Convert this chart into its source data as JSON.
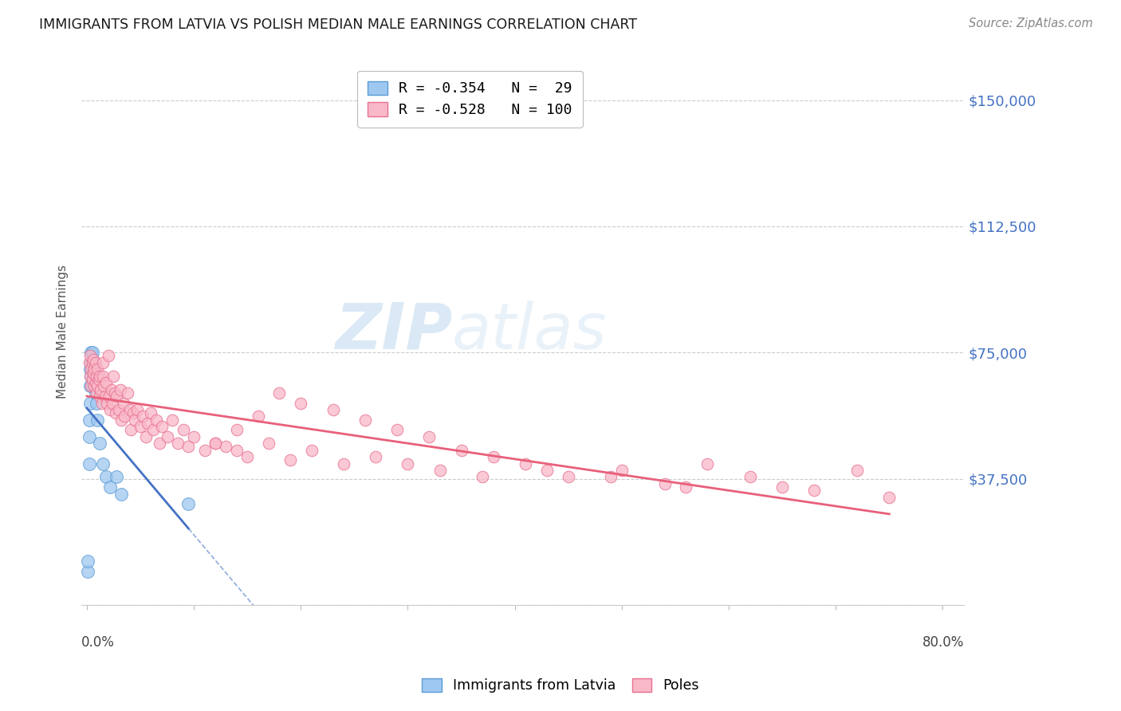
{
  "title": "IMMIGRANTS FROM LATVIA VS POLISH MEDIAN MALE EARNINGS CORRELATION CHART",
  "source": "Source: ZipAtlas.com",
  "ylabel": "Median Male Earnings",
  "yticks": [
    0,
    37500,
    75000,
    112500,
    150000
  ],
  "ytick_labels": [
    "",
    "$37,500",
    "$75,000",
    "$112,500",
    "$150,000"
  ],
  "ylim": [
    0,
    162500
  ],
  "xlim": [
    -0.005,
    0.82
  ],
  "watermark_text": "ZIPatlas",
  "color_latvia": "#9EC8F0",
  "color_poles": "#F9B8C8",
  "color_latvia_edge": "#5B9BD5",
  "color_poles_edge": "#E87090",
  "color_latvia_line": "#4472C4",
  "color_poles_line": "#E8607A",
  "color_right_labels": "#4472C4",
  "background_color": "#FFFFFF",
  "grid_color": "#CCCCCC",
  "legend_label1": "R = -0.354   N =  29",
  "legend_label2": "R = -0.528   N = 100",
  "bottom_legend1": "Immigrants from Latvia",
  "bottom_legend2": "Poles",
  "latvia_x": [
    0.001,
    0.001,
    0.002,
    0.002,
    0.002,
    0.003,
    0.003,
    0.003,
    0.004,
    0.004,
    0.004,
    0.005,
    0.005,
    0.005,
    0.006,
    0.006,
    0.007,
    0.007,
    0.008,
    0.009,
    0.009,
    0.01,
    0.012,
    0.015,
    0.018,
    0.022,
    0.028,
    0.032,
    0.095
  ],
  "latvia_y": [
    10000,
    13000,
    42000,
    50000,
    55000,
    60000,
    65000,
    70000,
    68000,
    72000,
    75000,
    65000,
    70000,
    75000,
    68000,
    72000,
    65000,
    70000,
    63000,
    60000,
    65000,
    55000,
    48000,
    42000,
    38000,
    35000,
    38000,
    33000,
    30000
  ],
  "poles_x": [
    0.002,
    0.003,
    0.003,
    0.004,
    0.004,
    0.005,
    0.005,
    0.006,
    0.006,
    0.007,
    0.007,
    0.008,
    0.008,
    0.009,
    0.009,
    0.01,
    0.01,
    0.011,
    0.012,
    0.012,
    0.013,
    0.014,
    0.015,
    0.015,
    0.016,
    0.017,
    0.018,
    0.019,
    0.02,
    0.021,
    0.022,
    0.023,
    0.024,
    0.025,
    0.026,
    0.027,
    0.028,
    0.03,
    0.031,
    0.032,
    0.034,
    0.035,
    0.038,
    0.04,
    0.041,
    0.043,
    0.045,
    0.047,
    0.05,
    0.052,
    0.055,
    0.057,
    0.06,
    0.062,
    0.065,
    0.068,
    0.07,
    0.075,
    0.08,
    0.085,
    0.09,
    0.095,
    0.1,
    0.11,
    0.12,
    0.13,
    0.14,
    0.15,
    0.17,
    0.19,
    0.21,
    0.24,
    0.27,
    0.3,
    0.33,
    0.37,
    0.41,
    0.45,
    0.5,
    0.54,
    0.58,
    0.62,
    0.65,
    0.68,
    0.72,
    0.75,
    0.49,
    0.56,
    0.43,
    0.38,
    0.35,
    0.32,
    0.29,
    0.26,
    0.23,
    0.2,
    0.18,
    0.16,
    0.14,
    0.12
  ],
  "poles_y": [
    72000,
    68000,
    74000,
    70000,
    65000,
    72000,
    67000,
    69000,
    73000,
    65000,
    70000,
    66000,
    72000,
    68000,
    63000,
    70000,
    65000,
    67000,
    62000,
    68000,
    64000,
    60000,
    68000,
    72000,
    65000,
    62000,
    66000,
    60000,
    74000,
    62000,
    58000,
    64000,
    60000,
    68000,
    63000,
    57000,
    62000,
    58000,
    64000,
    55000,
    60000,
    56000,
    63000,
    58000,
    52000,
    57000,
    55000,
    58000,
    53000,
    56000,
    50000,
    54000,
    57000,
    52000,
    55000,
    48000,
    53000,
    50000,
    55000,
    48000,
    52000,
    47000,
    50000,
    46000,
    48000,
    47000,
    46000,
    44000,
    48000,
    43000,
    46000,
    42000,
    44000,
    42000,
    40000,
    38000,
    42000,
    38000,
    40000,
    36000,
    42000,
    38000,
    35000,
    34000,
    40000,
    32000,
    38000,
    35000,
    40000,
    44000,
    46000,
    50000,
    52000,
    55000,
    58000,
    60000,
    63000,
    56000,
    52000,
    48000
  ]
}
